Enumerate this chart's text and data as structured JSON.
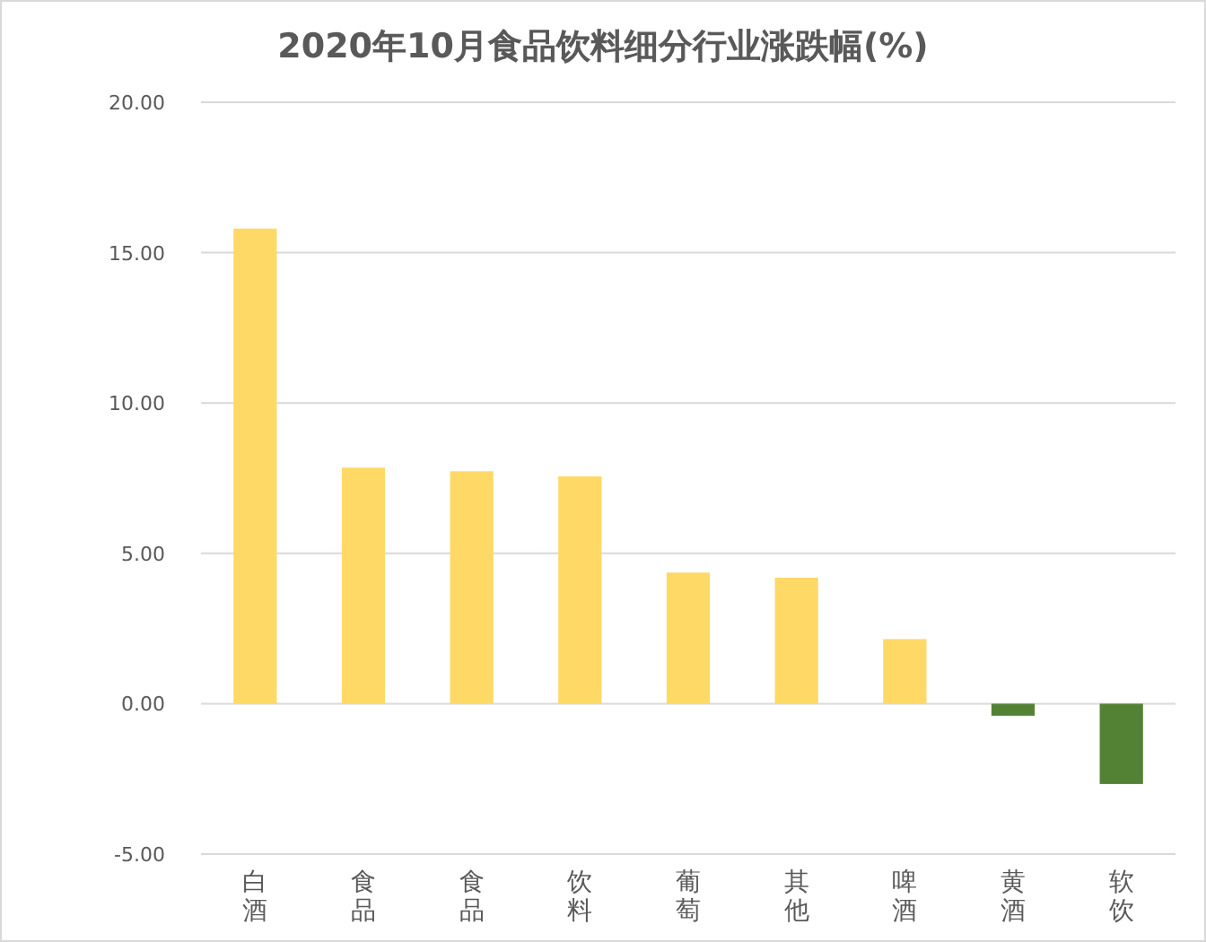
{
  "chart_data": {
    "type": "bar",
    "title": "2020年10月食品饮料细分行业涨跌幅(%)",
    "categories": [
      "白酒",
      "食品",
      "食品",
      "饮料",
      "葡萄",
      "其他",
      "啤酒",
      "黄酒",
      "软饮"
    ],
    "values": [
      15.8,
      7.85,
      7.73,
      7.56,
      4.36,
      4.19,
      2.15,
      -0.4,
      -2.67
    ],
    "colors": [
      "#ffd966",
      "#ffd966",
      "#ffd966",
      "#ffd966",
      "#ffd966",
      "#ffd966",
      "#ffd966",
      "#548235",
      "#548235"
    ],
    "ylim": [
      -5,
      20
    ],
    "yticks": [
      {
        "value": -5,
        "label": "-5.00"
      },
      {
        "value": 0,
        "label": "0.00"
      },
      {
        "value": 5,
        "label": "5.00"
      },
      {
        "value": 10,
        "label": "10.00"
      },
      {
        "value": 15,
        "label": "15.00"
      },
      {
        "value": 20,
        "label": "20.00"
      }
    ],
    "grid": "y"
  }
}
